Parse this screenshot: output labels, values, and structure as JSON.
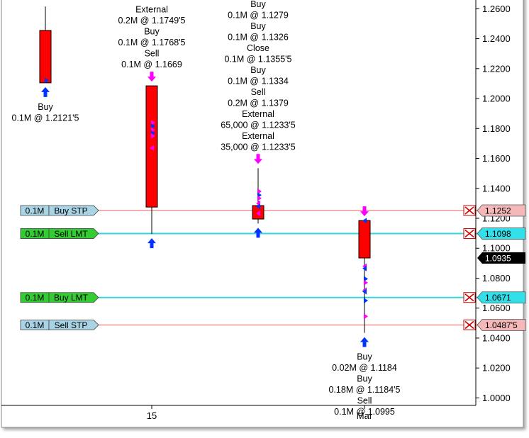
{
  "chart_data": {
    "type": "candlestick",
    "y_axis": {
      "range": [
        0.995,
        1.263
      ],
      "ticks": [
        1.0,
        1.02,
        1.04,
        1.06,
        1.08,
        1.1,
        1.12,
        1.14,
        1.16,
        1.18,
        1.2,
        1.22,
        1.24,
        1.26
      ],
      "tick_labels": [
        "1.0000",
        "1.0200",
        "1.0400",
        "1.0600",
        "1.0800",
        "1.1000",
        "1.1200",
        "1.1400",
        "1.1600",
        "1.1800",
        "1.2000",
        "1.2200",
        "1.2400",
        "1.2600"
      ],
      "side": "right"
    },
    "x_axis": {
      "labels": [
        {
          "text": "15",
          "at": 1
        },
        {
          "text": "Mar",
          "at": 3
        }
      ]
    },
    "candles": [
      {
        "index": 0,
        "open": 1.2455,
        "high": 1.2615,
        "low": 1.2105,
        "close": 1.2105,
        "color": "#ff0000"
      },
      {
        "index": 1,
        "open": 1.2085,
        "high": 1.2085,
        "low": 1.1095,
        "close": 1.1275,
        "color": "#ff0000"
      },
      {
        "index": 2,
        "open": 1.1285,
        "high": 1.1535,
        "low": 1.1165,
        "close": 1.1195,
        "color": "#ff0000"
      },
      {
        "index": 3,
        "open": 1.1185,
        "high": 1.1185,
        "low": 1.0435,
        "close": 1.0935,
        "color": "#ff0000"
      }
    ],
    "order_lines": [
      {
        "price": 1.1252,
        "price_label": "1.1252",
        "size": "0.1M",
        "type": "Buy STP",
        "line_color": "#f4b0b0",
        "tag_color": "#f4b8b8",
        "label_color": "#a8d4e6"
      },
      {
        "price": 1.1098,
        "price_label": "1.1098",
        "size": "0.1M",
        "type": "Sell LMT",
        "line_color": "#33d6e0",
        "tag_color": "#33e0ea",
        "label_color": "#33cc33"
      },
      {
        "price": 1.0671,
        "price_label": "1.0671",
        "size": "0.1M",
        "type": "Buy LMT",
        "line_color": "#33d6e0",
        "tag_color": "#33e0ea",
        "label_color": "#33cc33"
      },
      {
        "price": 1.04875,
        "price_label": "1.0487'5",
        "size": "0.1M",
        "type": "Sell STP",
        "line_color": "#f4b0b0",
        "tag_color": "#f4b8b8",
        "label_color": "#a8d4e6"
      }
    ],
    "current_price": {
      "price": 1.0935,
      "label": "1.0935"
    },
    "annotations": [
      {
        "candle": 0,
        "anchor": "below",
        "lines": [
          "Buy",
          "0.1M @ 1.2121'5"
        ]
      },
      {
        "candle": 1,
        "anchor": "above",
        "lines": [
          "External",
          "0.2M @ 1.1749'5",
          "Buy",
          "0.1M @ 1.1768'5",
          "Sell",
          "0.1M @ 1.1669"
        ]
      },
      {
        "candle": 1,
        "anchor": "below",
        "lines": []
      },
      {
        "candle": 2,
        "anchor": "above",
        "lines": [
          "Buy",
          "0.1M @ 1.1279",
          "Buy",
          "0.1M @ 1.1326",
          "Close",
          "0.1M @ 1.1355'5",
          "Buy",
          "0.1M @ 1.1334",
          "Sell",
          "0.2M @ 1.1379",
          "External",
          "65,000 @ 1.1233'5",
          "External",
          "35,000 @ 1.1233'5"
        ]
      },
      {
        "candle": 3,
        "anchor": "below",
        "lines": [
          "Buy",
          "0.02M @ 1.1184",
          "Buy",
          "0.18M @ 1.1184'5",
          "Sell",
          "0.1M @ 1.0995"
        ]
      }
    ],
    "fills": [
      {
        "candle": 0,
        "price": 1.2121,
        "color": "#0033ff"
      },
      {
        "candle": 1,
        "price": 1.1838,
        "color": "#ff00ff"
      },
      {
        "candle": 1,
        "price": 1.1815,
        "color": "#0033ff"
      },
      {
        "candle": 1,
        "price": 1.179,
        "color": "#ff00ff"
      },
      {
        "candle": 1,
        "price": 1.1768,
        "color": "#0033ff"
      },
      {
        "candle": 1,
        "price": 1.175,
        "color": "#ff00ff"
      },
      {
        "candle": 1,
        "price": 1.167,
        "color": "#ff00ff"
      },
      {
        "candle": 2,
        "price": 1.138,
        "color": "#ff00ff"
      },
      {
        "candle": 2,
        "price": 1.1355,
        "color": "#0033ff"
      },
      {
        "candle": 2,
        "price": 1.1334,
        "color": "#ff00ff"
      },
      {
        "candle": 2,
        "price": 1.13,
        "color": "#ff00ff"
      },
      {
        "candle": 2,
        "price": 1.1279,
        "color": "#0033ff"
      },
      {
        "candle": 2,
        "price": 1.1233,
        "color": "#ff00ff"
      },
      {
        "candle": 3,
        "price": 1.1184,
        "color": "#0033ff"
      },
      {
        "candle": 3,
        "price": 1.088,
        "color": "#ff00ff"
      },
      {
        "candle": 3,
        "price": 1.0865,
        "color": "#0033ff"
      },
      {
        "candle": 3,
        "price": 1.0795,
        "color": "#0033ff"
      },
      {
        "candle": 3,
        "price": 1.077,
        "color": "#ff00ff"
      },
      {
        "candle": 3,
        "price": 1.072,
        "color": "#ff00ff"
      },
      {
        "candle": 3,
        "price": 1.071,
        "color": "#0033ff"
      },
      {
        "candle": 3,
        "price": 1.065,
        "color": "#0033ff"
      },
      {
        "candle": 3,
        "price": 1.0545,
        "color": "#ff00ff"
      }
    ],
    "markers": [
      {
        "candle": 0,
        "side": "below",
        "color": "#0033ff"
      },
      {
        "candle": 1,
        "side": "above",
        "color": "#ff00ff"
      },
      {
        "candle": 1,
        "side": "below",
        "color": "#0033ff"
      },
      {
        "candle": 2,
        "side": "above",
        "color": "#ff00ff"
      },
      {
        "candle": 2,
        "side": "below",
        "color": "#0033ff"
      },
      {
        "candle": 3,
        "side": "above",
        "color": "#ff00ff"
      },
      {
        "candle": 3,
        "side": "below",
        "color": "#0033ff"
      }
    ],
    "grid": false
  },
  "colors": {
    "background": "#ffffff",
    "axis": "#000000",
    "cancel_icon": "#cc0000",
    "current_price_tag": "#000000"
  },
  "icons": {
    "cancel": "close-x-icon",
    "fill_buy": "blue-triangle-icon",
    "fill_sell": "magenta-triangle-icon"
  }
}
